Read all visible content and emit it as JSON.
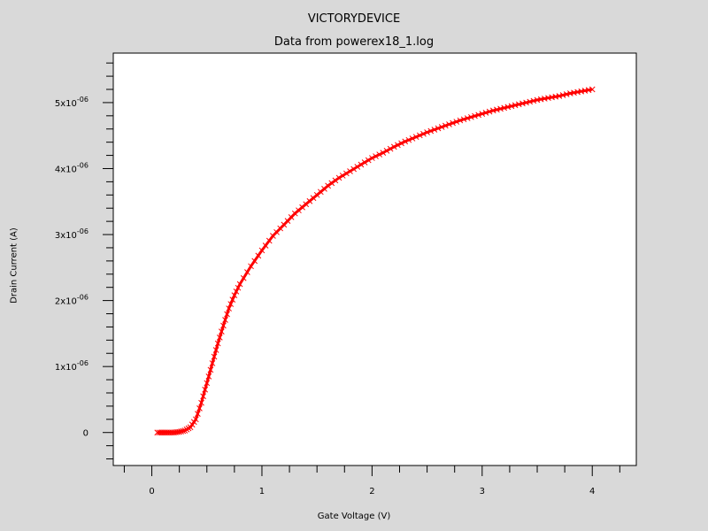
{
  "chart_data": {
    "type": "line",
    "title": "VICTORYDEVICE",
    "subtitle": "Data from powerex18_1.log",
    "xlabel": "Gate Voltage (V)",
    "ylabel": "Drain Current (A)",
    "xlim": [
      -0.35,
      4.4
    ],
    "ylim": [
      -5e-07,
      5.75e-06
    ],
    "xticks": [
      {
        "value": 0,
        "label": "0"
      },
      {
        "value": 1,
        "label": "1"
      },
      {
        "value": 2,
        "label": "2"
      },
      {
        "value": 3,
        "label": "3"
      },
      {
        "value": 4,
        "label": "4"
      }
    ],
    "yticks": [
      {
        "value": 0,
        "mantissa": "0",
        "exp": ""
      },
      {
        "value": 1e-06,
        "mantissa": "1x10",
        "exp": "-06"
      },
      {
        "value": 2e-06,
        "mantissa": "2x10",
        "exp": "-06"
      },
      {
        "value": 3e-06,
        "mantissa": "3x10",
        "exp": "-06"
      },
      {
        "value": 4e-06,
        "mantissa": "4x10",
        "exp": "-06"
      },
      {
        "value": 5e-06,
        "mantissa": "5x10",
        "exp": "-06"
      }
    ],
    "series": [
      {
        "color": "#ff0000",
        "marker": "x",
        "x": [
          0.05,
          0.1,
          0.15,
          0.2,
          0.25,
          0.3,
          0.35,
          0.4,
          0.45,
          0.5,
          0.55,
          0.6,
          0.65,
          0.7,
          0.75,
          0.8,
          0.9,
          1.0,
          1.1,
          1.2,
          1.3,
          1.4,
          1.5,
          1.6,
          1.7,
          1.8,
          1.9,
          2.0,
          2.1,
          2.2,
          2.3,
          2.4,
          2.5,
          2.6,
          2.7,
          2.8,
          2.9,
          3.0,
          3.1,
          3.2,
          3.3,
          3.4,
          3.5,
          3.6,
          3.7,
          3.8,
          3.9,
          4.0
        ],
        "y": [
          0,
          0,
          0,
          0,
          1e-08,
          3e-08,
          8e-08,
          2e-07,
          4.5e-07,
          7.5e-07,
          1.05e-06,
          1.35e-06,
          1.62e-06,
          1.88e-06,
          2.08e-06,
          2.25e-06,
          2.52e-06,
          2.76e-06,
          2.98e-06,
          3.15e-06,
          3.32e-06,
          3.46e-06,
          3.6e-06,
          3.74e-06,
          3.86e-06,
          3.96e-06,
          4.06e-06,
          4.16e-06,
          4.24e-06,
          4.33e-06,
          4.41e-06,
          4.48e-06,
          4.55e-06,
          4.61e-06,
          4.67e-06,
          4.73e-06,
          4.78e-06,
          4.83e-06,
          4.88e-06,
          4.92e-06,
          4.96e-06,
          5e-06,
          5.04e-06,
          5.07e-06,
          5.1e-06,
          5.14e-06,
          5.17e-06,
          5.2e-06
        ]
      }
    ],
    "grid": false,
    "plot_background": "#ffffff",
    "page_background": "#d9d9d9"
  }
}
